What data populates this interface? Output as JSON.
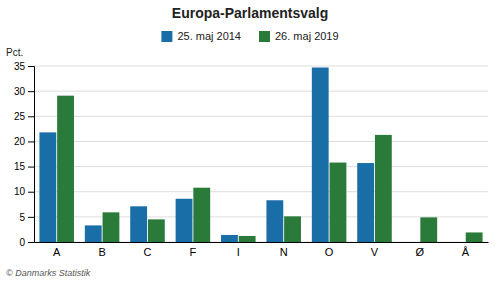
{
  "chart_data": {
    "type": "bar",
    "title": "Europa-Parlamentsvalg",
    "categories": [
      "A",
      "B",
      "C",
      "F",
      "I",
      "N",
      "O",
      "V",
      "Ø",
      "Å"
    ],
    "series": [
      {
        "name": "25. maj 2014",
        "color": "#1a6ea8",
        "values": [
          21.8,
          3.3,
          7.1,
          8.6,
          1.4,
          8.3,
          34.7,
          15.7,
          0.0,
          0.0
        ]
      },
      {
        "name": "26. maj 2019",
        "color": "#2a7a3a",
        "values": [
          29.1,
          5.9,
          4.5,
          10.8,
          1.2,
          5.1,
          15.8,
          21.3,
          4.9,
          1.9
        ]
      }
    ],
    "ylabel": "Pct.",
    "ylim": [
      0,
      35
    ],
    "yticks": [
      0,
      5,
      10,
      15,
      20,
      25,
      30,
      35
    ],
    "grid": true,
    "legend": "top",
    "annotations": [
      "© Danmarks Statistik"
    ]
  }
}
